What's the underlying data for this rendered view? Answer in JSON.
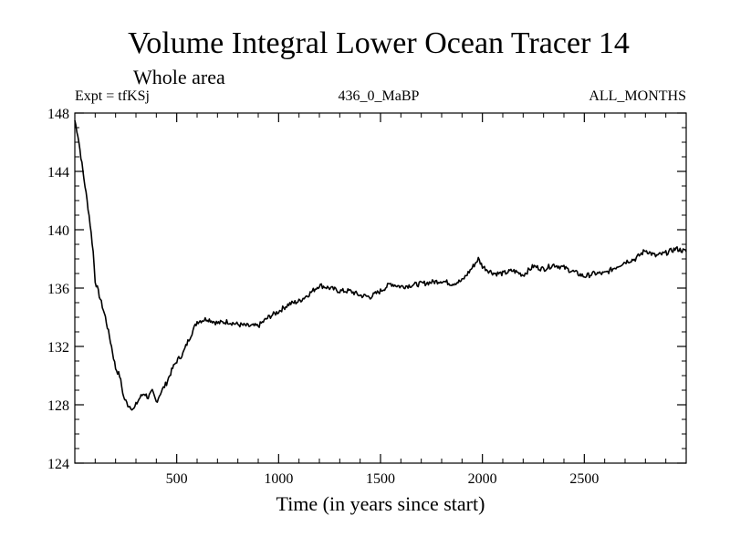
{
  "chart_data": {
    "type": "line",
    "title": "Volume Integral Lower Ocean Tracer 14",
    "subtitle": "Whole area",
    "expt_label": "Expt = tfKSj",
    "center_label": "436_0_MaBP",
    "right_label": "ALL_MONTHS",
    "xlabel": "Time (in years since start)",
    "ylabel": "",
    "xlim": [
      0,
      3000
    ],
    "ylim": [
      124,
      148
    ],
    "x_ticks": [
      500,
      1000,
      1500,
      2000,
      2500
    ],
    "x_tick_labels": [
      "500",
      "1000",
      "1500",
      "2000",
      "2500"
    ],
    "y_ticks": [
      124,
      128,
      132,
      136,
      140,
      144,
      148
    ],
    "y_tick_labels": [
      "124",
      "128",
      "132",
      "136",
      "140",
      "144",
      "148"
    ],
    "grid": false,
    "series": [
      {
        "name": "Volume Integral Lower Ocean Tracer 14",
        "color": "#000000",
        "x": [
          0,
          15,
          30,
          50,
          70,
          90,
          100,
          120,
          150,
          180,
          200,
          220,
          240,
          260,
          280,
          290,
          300,
          320,
          340,
          360,
          380,
          400,
          420,
          450,
          480,
          500,
          530,
          560,
          600,
          650,
          700,
          750,
          800,
          850,
          900,
          950,
          1000,
          1050,
          1100,
          1150,
          1200,
          1250,
          1300,
          1350,
          1400,
          1450,
          1500,
          1550,
          1600,
          1650,
          1700,
          1750,
          1800,
          1850,
          1900,
          1950,
          1980,
          2000,
          2030,
          2060,
          2100,
          2150,
          2200,
          2250,
          2300,
          2350,
          2400,
          2450,
          2500,
          2550,
          2600,
          2650,
          2700,
          2750,
          2800,
          2850,
          2900,
          2950,
          3000
        ],
        "values": [
          147.5,
          146.5,
          145.0,
          143.0,
          141.0,
          138.5,
          136.5,
          135.5,
          134.0,
          132.0,
          130.5,
          130.0,
          128.5,
          128.0,
          127.8,
          127.7,
          128.0,
          128.5,
          128.8,
          128.5,
          128.9,
          128.2,
          128.8,
          129.5,
          130.5,
          131.0,
          131.5,
          132.5,
          133.7,
          133.9,
          133.6,
          133.7,
          133.5,
          133.4,
          133.4,
          134.0,
          134.4,
          134.9,
          135.1,
          135.6,
          136.2,
          136.0,
          135.8,
          135.8,
          135.5,
          135.4,
          135.8,
          136.3,
          136.1,
          136.2,
          136.3,
          136.4,
          136.5,
          136.3,
          136.5,
          137.4,
          138.0,
          137.5,
          137.2,
          137.0,
          137.0,
          137.2,
          136.9,
          137.5,
          137.3,
          137.6,
          137.4,
          137.1,
          136.8,
          137.0,
          137.0,
          137.4,
          137.8,
          138.0,
          138.6,
          138.2,
          138.4,
          138.7,
          138.5
        ]
      }
    ]
  }
}
